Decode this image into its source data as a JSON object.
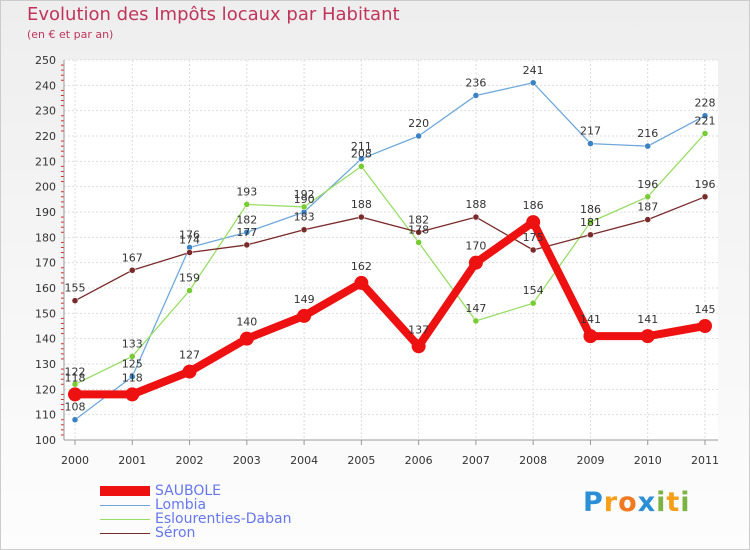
{
  "title": "Evolution des Impôts locaux par Habitant",
  "subtitle": "(en € et par an)",
  "logo": {
    "letters": [
      "P",
      "r",
      "o",
      "x",
      "i",
      "t",
      "i"
    ],
    "colors": [
      "#2a8fd6",
      "#f6a01a",
      "#f07a22",
      "#2a8fd6",
      "#7cb342",
      "#f6a01a",
      "#7cb342"
    ]
  },
  "chart_data": {
    "type": "line",
    "title": "Evolution des Impôts locaux par Habitant",
    "subtitle": "(en € et par an)",
    "xlabel": "",
    "ylabel": "",
    "ylim": [
      100,
      250
    ],
    "yticks": [
      "100",
      "110",
      "120",
      "130",
      "140",
      "150",
      "160",
      "170",
      "180",
      "190",
      "200",
      "210",
      "220",
      "230",
      "240",
      "250"
    ],
    "x": [
      "2000",
      "2001",
      "2002",
      "2003",
      "2004",
      "2005",
      "2006",
      "2007",
      "2008",
      "2009",
      "2010",
      "2011"
    ],
    "grid": true,
    "legend_position": "bottom-left",
    "series": [
      {
        "name": "Lombia",
        "color": "#6fa8dc",
        "marker": "#3b82c4",
        "values": [
          108,
          125,
          176,
          182,
          190,
          211,
          220,
          236,
          241,
          217,
          216,
          228
        ],
        "labels": [
          "108",
          "125",
          "176",
          "182",
          "190",
          "211",
          "220",
          "236",
          "241",
          "217",
          "216",
          "228"
        ]
      },
      {
        "name": "Eslourenties-Daban",
        "color": "#99dd66",
        "marker": "#77cc33",
        "values": [
          122,
          133,
          159,
          193,
          192,
          208,
          178,
          147,
          154,
          186,
          196,
          221
        ],
        "labels": [
          "122",
          "133",
          "159",
          "193",
          "192",
          "208",
          "178",
          "147",
          "154",
          "186",
          "196",
          "221"
        ]
      },
      {
        "name": "Séron",
        "color": "#7a2a2a",
        "marker": "#7a2a2a",
        "values": [
          155,
          167,
          174,
          177,
          183,
          188,
          182,
          188,
          175,
          181,
          187,
          196
        ],
        "labels": [
          "155",
          "167",
          "174",
          "177",
          "183",
          "188",
          "182",
          "188",
          "175",
          "181",
          "187",
          "196"
        ]
      },
      {
        "name": "SAUBOLE",
        "color": "#ee1111",
        "marker": "#ee1111",
        "values": [
          118,
          118,
          127,
          140,
          149,
          162,
          137,
          170,
          186,
          141,
          141,
          145
        ],
        "labels": [
          "118",
          "118",
          "127",
          "140",
          "149",
          "162",
          "137",
          "170",
          "186",
          "141",
          "141",
          "145"
        ]
      }
    ],
    "legend": [
      "SAUBOLE",
      "Lombia",
      "Eslourenties-Daban",
      "Séron"
    ]
  }
}
